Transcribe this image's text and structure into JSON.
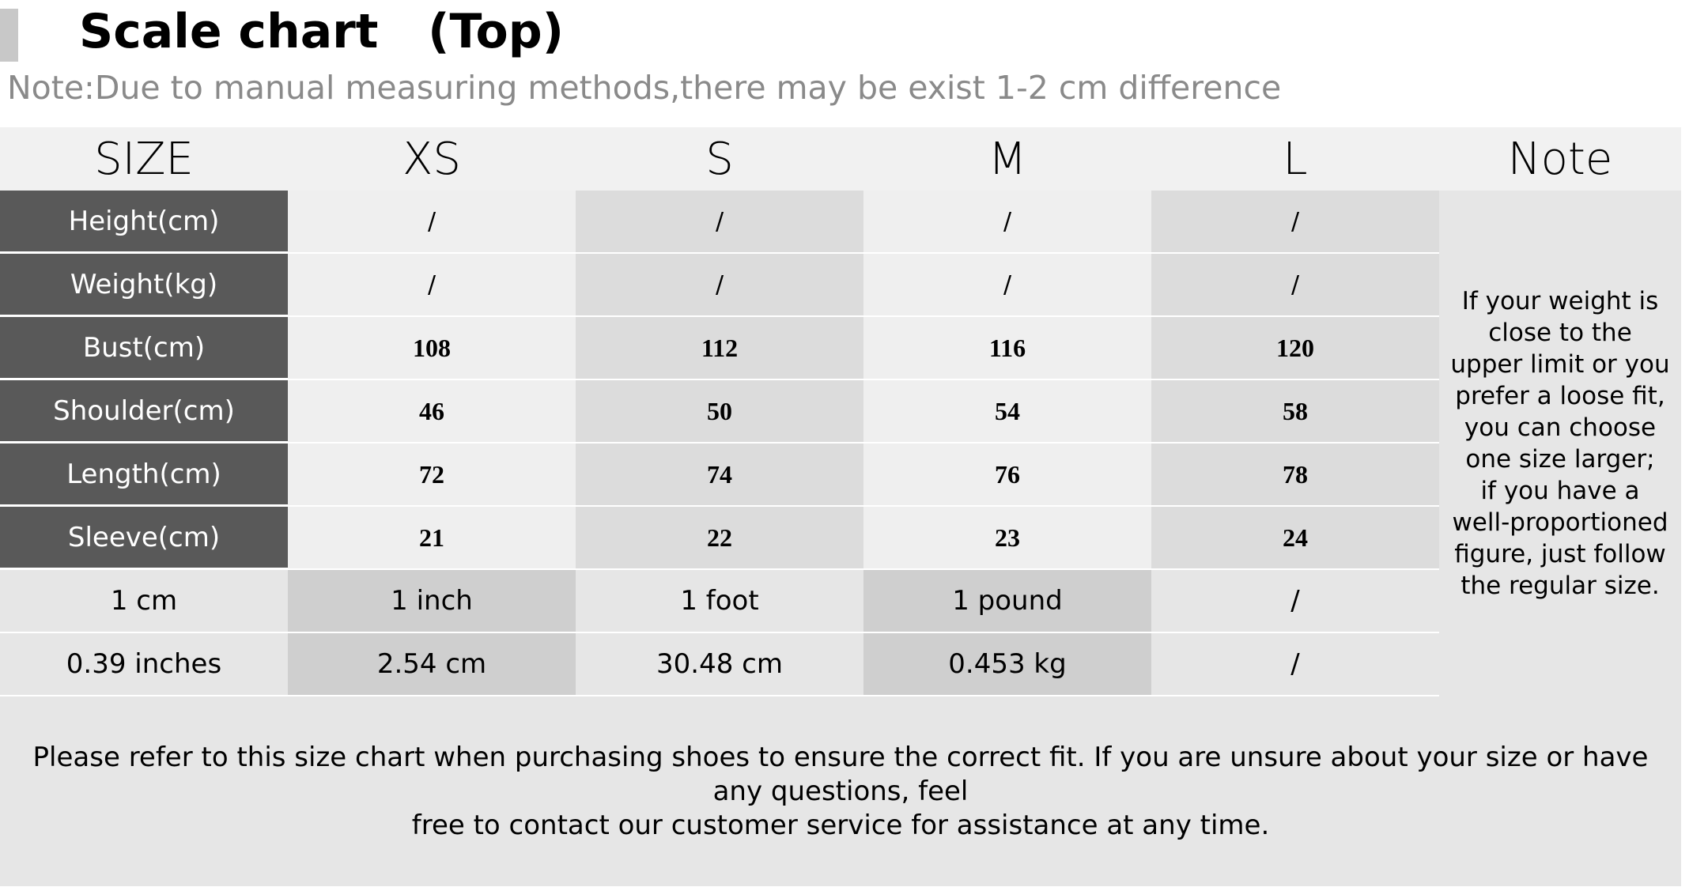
{
  "title": "Scale chart   (Top)",
  "subtitle": "Note:Due to manual measuring methods,there may be exist 1-2 cm difference",
  "table": {
    "headers": [
      "SIZE",
      "XS",
      "S",
      "M",
      "L",
      "Note"
    ],
    "rows": [
      {
        "label": "Height(cm)",
        "values": [
          "/",
          "/",
          "/",
          "/"
        ]
      },
      {
        "label": "Weight(kg)",
        "values": [
          "/",
          "/",
          "/",
          "/"
        ]
      },
      {
        "label": "Bust(cm)",
        "values": [
          "108",
          "112",
          "116",
          "120"
        ]
      },
      {
        "label": "Shoulder(cm)",
        "values": [
          "46",
          "50",
          "54",
          "58"
        ]
      },
      {
        "label": "Length(cm)",
        "values": [
          "72",
          "74",
          "76",
          "78"
        ]
      },
      {
        "label": "Sleeve(cm)",
        "values": [
          "21",
          "22",
          "23",
          "24"
        ]
      }
    ],
    "note": "If your weight is close to the upper limit or you prefer a loose fit, you can choose one size larger;\nif you have a well-proportioned figure, just follow the regular size."
  },
  "conversions": [
    [
      "1 cm",
      "1 inch",
      "1 foot",
      "1 pound",
      "/"
    ],
    [
      "0.39 inches",
      "2.54 cm",
      "30.48 cm",
      "0.453 kg",
      "/"
    ]
  ],
  "footer": {
    "line1": "Please refer to this size chart when purchasing shoes to ensure the correct fit. If you are unsure about your size or have any questions, feel",
    "line2": "free to contact our customer service for assistance at any time."
  }
}
